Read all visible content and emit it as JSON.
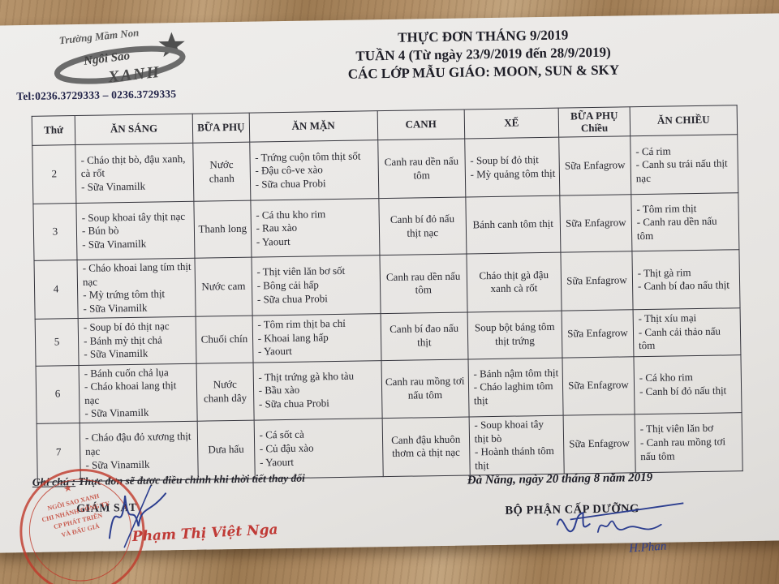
{
  "page": {
    "logo": {
      "top_text": "Trường Mầm Non",
      "name_line1": "Ngôi Sao",
      "name_line2": "XANH"
    },
    "tel": "Tel:0236.3729333 – 0236.3729335",
    "title": {
      "line1": "THỰC ĐƠN THÁNG 9/2019",
      "line2": "TUẦN 4 (Từ ngày 23/9/2019 đến 28/9/2019)",
      "line3": "CÁC LỚP MẪU GIÁO: MOON, SUN & SKY"
    }
  },
  "menu_table": {
    "headers": [
      "Thứ",
      "ĂN SÁNG",
      "BỮA PHỤ",
      "ĂN MẶN",
      "CANH",
      "XẾ",
      "BỮA PHỤ",
      "ĂN CHIỀU"
    ],
    "chieu_sub": "Chiều",
    "rows": [
      {
        "day": "2",
        "an_sang": [
          "- Cháo thịt bò, đậu xanh, cà rốt",
          "- Sữa Vinamilk"
        ],
        "bua_phu": "Nước chanh",
        "an_man": [
          "- Trứng cuộn tôm thịt sốt",
          "- Đậu cô-ve xào",
          "- Sữa chua Probi"
        ],
        "canh": "Canh rau dền nấu tôm",
        "xe": [
          "- Soup bí đỏ thịt",
          "- Mỳ quảng tôm thịt"
        ],
        "bua_phu_chieu": "Sữa Enfagrow",
        "an_chieu": [
          "- Cá rim",
          "- Canh su trái nấu thịt nạc"
        ]
      },
      {
        "day": "3",
        "an_sang": [
          "- Soup khoai tây thịt nạc",
          "- Bún bò",
          "- Sữa Vinamilk"
        ],
        "bua_phu": "Thanh long",
        "an_man": [
          "- Cá thu kho rim",
          "- Rau xào",
          "- Yaourt"
        ],
        "canh": "Canh bí đỏ nấu thịt nạc",
        "xe": "Bánh canh tôm thịt",
        "bua_phu_chieu": "Sữa Enfagrow",
        "an_chieu": [
          "- Tôm rim thịt",
          "- Canh rau dền nấu tôm"
        ]
      },
      {
        "day": "4",
        "an_sang": [
          "- Cháo khoai lang tím thịt nạc",
          "- Mỳ trứng tôm thịt",
          "- Sữa Vinamilk"
        ],
        "bua_phu": "Nước cam",
        "an_man": [
          "- Thịt viên lăn bơ sốt",
          "- Bông cải hấp",
          "- Sữa chua Probi"
        ],
        "canh": "Canh rau dền nấu tôm",
        "xe": "Cháo thịt gà đậu xanh cà rốt",
        "bua_phu_chieu": "Sữa Enfagrow",
        "an_chieu": [
          "- Thịt gà rim",
          "- Canh bí đao nấu thịt"
        ]
      },
      {
        "day": "5",
        "an_sang": [
          "- Soup bí đỏ thịt nạc",
          "- Bánh mỳ thịt chả",
          "- Sữa Vinamilk"
        ],
        "bua_phu": "Chuối chín",
        "an_man": [
          "- Tôm rim thịt ba chỉ",
          "- Khoai lang hấp",
          "- Yaourt"
        ],
        "canh": "Canh bí đao nấu thịt",
        "xe": "Soup bột báng tôm thịt trứng",
        "bua_phu_chieu": "Sữa Enfagrow",
        "an_chieu": [
          "- Thịt xíu mại",
          "- Canh cải thảo nấu tôm"
        ]
      },
      {
        "day": "6",
        "an_sang": [
          "- Bánh cuốn chả lụa",
          "- Cháo khoai lang thịt nạc",
          "- Sữa Vinamilk"
        ],
        "bua_phu": "Nước chanh dây",
        "an_man": [
          "- Thịt trứng gà kho tàu",
          "- Bầu xào",
          "- Sữa chua Probi"
        ],
        "canh": "Canh rau mồng tơi nấu tôm",
        "xe": [
          "- Bánh nậm tôm thịt",
          "- Cháo laghim tôm thịt"
        ],
        "bua_phu_chieu": "Sữa Enfagrow",
        "an_chieu": [
          "- Cá kho rim",
          "- Canh bí đỏ nấu thịt"
        ]
      },
      {
        "day": "7",
        "an_sang": [
          "- Cháo đậu đỏ xương thịt nạc",
          "- Sữa Vinamilk"
        ],
        "bua_phu": "Dưa hấu",
        "an_man": [
          "- Cá sốt cà",
          "- Củ đậu xào",
          "- Yaourt"
        ],
        "canh": "Canh đậu khuôn thơm cà thịt nạc",
        "xe": [
          "- Soup khoai tây thịt bò",
          "- Hoành thánh tôm thịt"
        ],
        "bua_phu_chieu": "Sữa Enfagrow",
        "an_chieu": [
          "- Thịt viên lăn bơ",
          "- Canh rau mồng tơi nấu tôm"
        ]
      }
    ]
  },
  "footer": {
    "note_label": "Ghi chú :",
    "note_text": "Thực đơn sẽ được điều chỉnh khi thời tiết thay đổi",
    "date_line": "Đà Nẵng, ngày 20 tháng 8  năm 2019",
    "left_title": "GIÁM SÁT",
    "right_title": "BỘ PHẬN CẤP DƯỠNG",
    "left_signature_name": "Phạm Thị Việt Nga",
    "right_signature_name": "H.Phan",
    "stamp_lines": [
      "NGÔI SAO XANH",
      "CHI NHÁNH CÔNG TY",
      "CP PHÁT TRIỂN",
      "VÀ ĐẤU GIÁ"
    ],
    "stamp_star": "★"
  },
  "colors": {
    "stamp_red": "#c0392b",
    "ink_blue": "#2c3e8f",
    "script_red": "#c03a36"
  }
}
